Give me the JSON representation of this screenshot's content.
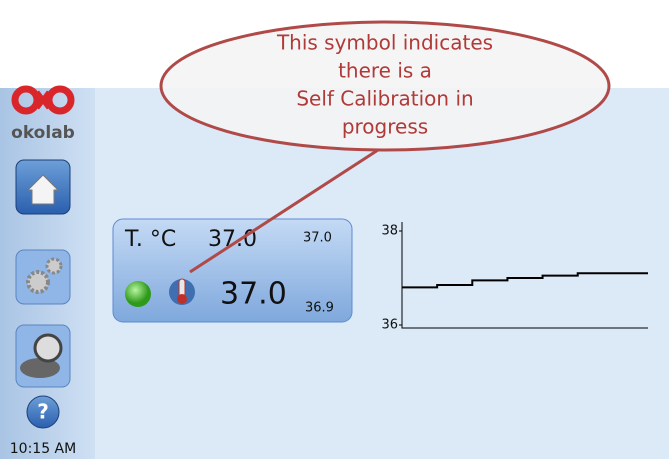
{
  "callout": {
    "lines": [
      "This symbol indicates",
      "there is a",
      "Self Calibration in",
      "progress"
    ]
  },
  "sidebar": {
    "logo": "okolab",
    "time": "10:15 AM"
  },
  "widget": {
    "label": "T. °C",
    "setpoint": "37.0",
    "max": "37.0",
    "reading": "37.0",
    "min": "36.9"
  },
  "trend": {
    "ylim": [
      36,
      38
    ],
    "yticks": [
      36,
      38
    ],
    "values": [
      36.8,
      36.85,
      36.95,
      37.0,
      37.05,
      37.1,
      37.1
    ]
  }
}
